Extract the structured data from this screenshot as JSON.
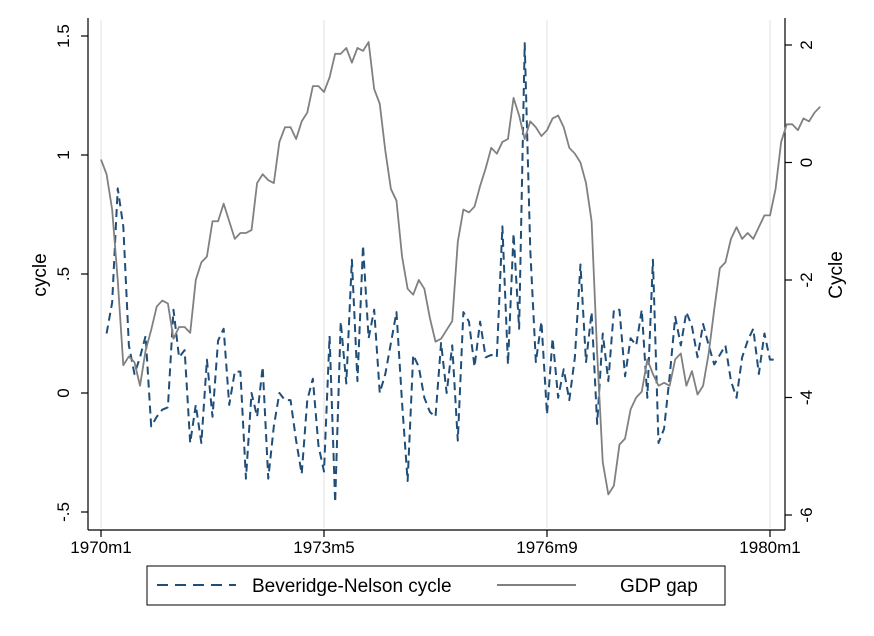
{
  "chart_data": {
    "type": "line",
    "title": "",
    "x_axis": {
      "label": "",
      "ticks": [
        "1970m1",
        "1973m5",
        "1976m9",
        "1980m1"
      ],
      "range": [
        "1970m1",
        "1980m1"
      ]
    },
    "y_left": {
      "label": "cycle",
      "range": [
        -0.5,
        1.5
      ],
      "ticks": [
        -0.5,
        0,
        0.5,
        1,
        1.5
      ],
      "tick_labels": [
        "-.5",
        "0",
        ".5",
        "1",
        "1.5"
      ]
    },
    "y_right": {
      "label": "Cycle",
      "range": [
        -6,
        2
      ],
      "ticks": [
        -6,
        -4,
        -2,
        0,
        2
      ],
      "tick_labels": [
        "-6",
        "-4",
        "-2",
        "0",
        "2"
      ]
    },
    "grid": "vertical at x ticks",
    "legend": {
      "position": "bottom",
      "entries": [
        "Beveridge-Nelson cycle",
        "GDP gap"
      ]
    },
    "colors": {
      "bn": "#1f4e79",
      "gap": "#808080",
      "grid": "#e6e6e6",
      "axis": "#000000"
    },
    "series": [
      {
        "name": "Beveridge-Nelson cycle",
        "axis": "left",
        "style": "dashed",
        "x_start": "1970m2",
        "frequency": "monthly",
        "values": [
          0.25,
          0.38,
          0.86,
          0.7,
          0.2,
          0.08,
          0.15,
          0.24,
          -0.14,
          -0.1,
          -0.07,
          -0.06,
          0.35,
          0.15,
          0.18,
          -0.21,
          -0.05,
          -0.21,
          0.14,
          -0.1,
          0.22,
          0.27,
          -0.05,
          0.09,
          0.09,
          -0.36,
          0.0,
          -0.1,
          0.11,
          -0.36,
          -0.14,
          0.0,
          -0.03,
          -0.03,
          -0.2,
          -0.34,
          -0.03,
          0.06,
          -0.22,
          -0.33,
          0.24,
          -0.46,
          0.3,
          0.04,
          0.56,
          0.05,
          0.62,
          0.23,
          0.35,
          0.0,
          0.08,
          0.21,
          0.34,
          -0.04,
          -0.37,
          0.16,
          0.11,
          -0.02,
          -0.08,
          -0.1,
          0.21,
          0.0,
          0.2,
          -0.2,
          0.34,
          0.3,
          0.11,
          0.3,
          0.15,
          0.16,
          0.15,
          0.7,
          0.12,
          0.67,
          0.27,
          1.47,
          0.6,
          0.13,
          0.3,
          -0.09,
          0.23,
          -0.02,
          0.1,
          -0.03,
          0.15,
          0.54,
          0.13,
          0.34,
          -0.13,
          0.25,
          0.05,
          0.35,
          0.35,
          0.07,
          0.23,
          0.2,
          0.35,
          -0.02,
          0.56,
          -0.21,
          -0.15,
          0.07,
          0.32,
          0.2,
          0.34,
          0.28,
          0.15,
          0.29,
          0.2,
          0.12,
          0.16,
          0.2,
          0.05,
          -0.02,
          0.15,
          0.22,
          0.27,
          0.08,
          0.25,
          0.14,
          0.14
        ]
      },
      {
        "name": "GDP gap",
        "axis": "right",
        "style": "solid",
        "x_start": "1970m1",
        "frequency": "monthly",
        "values": [
          0.05,
          -0.2,
          -0.8,
          -2.0,
          -3.45,
          -3.3,
          -3.4,
          -3.8,
          -3.2,
          -2.85,
          -2.45,
          -2.35,
          -2.4,
          -3.0,
          -2.8,
          -2.8,
          -2.9,
          -2.0,
          -1.7,
          -1.6,
          -1.0,
          -1.0,
          -0.7,
          -1.0,
          -1.3,
          -1.2,
          -1.2,
          -1.15,
          -0.35,
          -0.2,
          -0.3,
          -0.35,
          0.35,
          0.6,
          0.6,
          0.4,
          0.7,
          0.85,
          1.3,
          1.3,
          1.2,
          1.45,
          1.85,
          1.85,
          1.95,
          1.7,
          1.95,
          1.9,
          2.05,
          1.25,
          1.0,
          0.2,
          -0.45,
          -0.65,
          -1.6,
          -2.15,
          -2.25,
          -2.0,
          -2.15,
          -2.65,
          -3.05,
          -3.0,
          -2.85,
          -2.7,
          -1.35,
          -0.8,
          -0.85,
          -0.75,
          -0.4,
          -0.1,
          0.25,
          0.15,
          0.35,
          0.4,
          1.1,
          0.8,
          0.4,
          0.7,
          0.6,
          0.45,
          0.55,
          0.75,
          0.8,
          0.6,
          0.25,
          0.15,
          0.0,
          -0.35,
          -1.0,
          -3.25,
          -5.1,
          -5.65,
          -5.5,
          -4.8,
          -4.7,
          -4.2,
          -4.0,
          -3.9,
          -3.35,
          -3.6,
          -3.8,
          -3.75,
          -3.8,
          -3.35,
          -3.25,
          -3.8,
          -3.55,
          -3.95,
          -3.8,
          -3.25,
          -2.5,
          -1.8,
          -1.7,
          -1.3,
          -1.1,
          -1.3,
          -1.2,
          -1.3,
          -1.1,
          -0.9,
          -0.9,
          -0.45,
          0.35,
          0.65,
          0.65,
          0.55,
          0.75,
          0.7,
          0.85,
          0.95
        ]
      }
    ]
  }
}
